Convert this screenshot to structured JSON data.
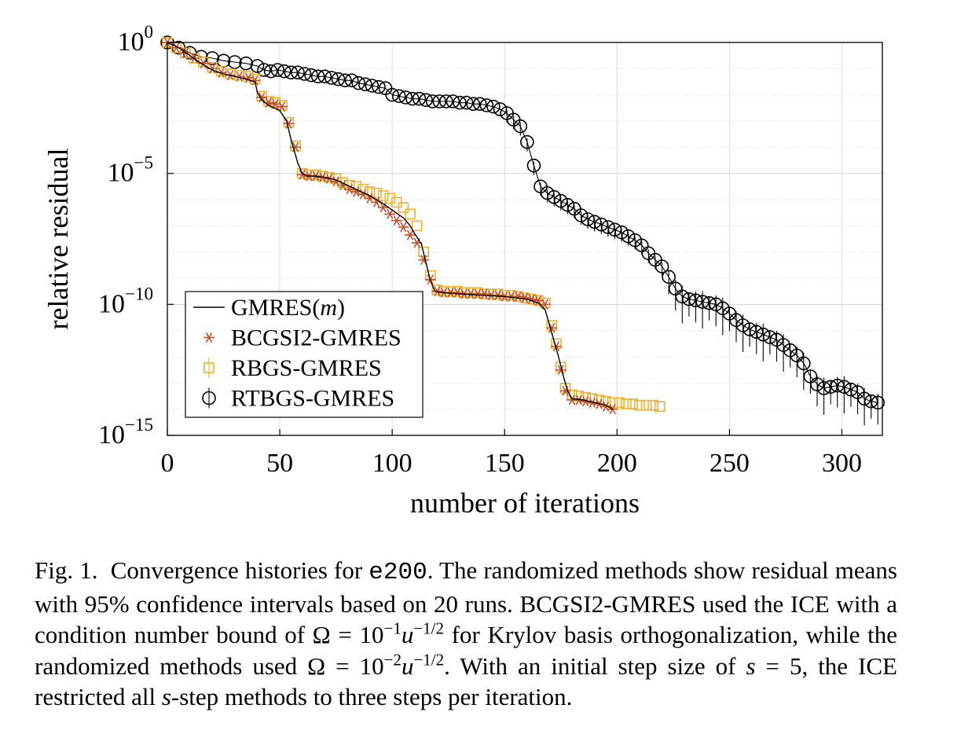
{
  "chart_data": {
    "type": "line",
    "xlabel": "number of iterations",
    "ylabel": "relative residual",
    "xlim": [
      0,
      318
    ],
    "ylim_log10": [
      -15,
      0
    ],
    "y_scale": "log",
    "x_ticks": [
      "0",
      "50",
      "100",
      "150",
      "200",
      "250",
      "300"
    ],
    "y_ticks": [
      {
        "base": "10",
        "exp": "0"
      },
      {
        "base": "10",
        "exp": "−5"
      },
      {
        "base": "10",
        "exp": "−10"
      },
      {
        "base": "10",
        "exp": "−15"
      }
    ],
    "grid": true,
    "legend_position": "lower-left",
    "legend": [
      {
        "prefix": "GMRES(",
        "italic": "m",
        "suffix": ")",
        "marker": "line",
        "color": "#000000"
      },
      {
        "prefix": "BCGSI2-GMRES",
        "italic": "",
        "suffix": "",
        "marker": "asterisk",
        "color": "#c0512f"
      },
      {
        "prefix": "RBGS-GMRES",
        "italic": "",
        "suffix": "",
        "marker": "square",
        "color": "#edb12e"
      },
      {
        "prefix": "RTBGS-GMRES",
        "italic": "",
        "suffix": "",
        "marker": "circle",
        "color": "#000000"
      }
    ],
    "series": [
      {
        "name": "GMRES(m)",
        "color": "#000000",
        "points": [
          [
            0,
            0
          ],
          [
            5,
            -0.2
          ],
          [
            10,
            -0.5
          ],
          [
            15,
            -0.8
          ],
          [
            20,
            -1.05
          ],
          [
            25,
            -1.2
          ],
          [
            30,
            -1.3
          ],
          [
            35,
            -1.4
          ],
          [
            39,
            -1.5
          ],
          [
            40,
            -1.9
          ],
          [
            42,
            -2.2
          ],
          [
            45,
            -2.4
          ],
          [
            50,
            -2.6
          ],
          [
            53,
            -3.0
          ],
          [
            55,
            -3.7
          ],
          [
            58,
            -4.6
          ],
          [
            60,
            -5.0
          ],
          [
            62,
            -5.1
          ],
          [
            65,
            -5.1
          ],
          [
            70,
            -5.15
          ],
          [
            75,
            -5.25
          ],
          [
            80,
            -5.45
          ],
          [
            85,
            -5.65
          ],
          [
            90,
            -5.85
          ],
          [
            95,
            -6.1
          ],
          [
            100,
            -6.4
          ],
          [
            105,
            -6.7
          ],
          [
            108,
            -7.0
          ],
          [
            110,
            -7.3
          ],
          [
            113,
            -7.7
          ],
          [
            115,
            -8.4
          ],
          [
            117,
            -9.1
          ],
          [
            119,
            -9.5
          ],
          [
            122,
            -9.55
          ],
          [
            130,
            -9.6
          ],
          [
            140,
            -9.65
          ],
          [
            150,
            -9.7
          ],
          [
            160,
            -9.8
          ],
          [
            165,
            -9.95
          ],
          [
            168,
            -10.2
          ],
          [
            170,
            -10.8
          ],
          [
            172,
            -11.4
          ],
          [
            174,
            -12.0
          ],
          [
            176,
            -12.7
          ],
          [
            178,
            -13.3
          ],
          [
            180,
            -13.6
          ],
          [
            185,
            -13.65
          ],
          [
            190,
            -13.75
          ],
          [
            195,
            -13.85
          ],
          [
            198,
            -14.0
          ]
        ]
      },
      {
        "name": "BCGSI2-GMRES",
        "color": "#c0512f",
        "points": [
          [
            0,
            0
          ],
          [
            4,
            -0.2
          ],
          [
            8,
            -0.4
          ],
          [
            12,
            -0.6
          ],
          [
            16,
            -0.8
          ],
          [
            20,
            -1.0
          ],
          [
            24,
            -1.15
          ],
          [
            28,
            -1.25
          ],
          [
            32,
            -1.3
          ],
          [
            36,
            -1.35
          ],
          [
            39,
            -1.45
          ],
          [
            42,
            -2.1
          ],
          [
            45,
            -2.3
          ],
          [
            48,
            -2.35
          ],
          [
            51,
            -2.45
          ],
          [
            54,
            -3.1
          ],
          [
            57,
            -4.0
          ],
          [
            60,
            -5.05
          ],
          [
            63,
            -5.1
          ],
          [
            66,
            -5.1
          ],
          [
            69,
            -5.15
          ],
          [
            72,
            -5.2
          ],
          [
            75,
            -5.3
          ],
          [
            78,
            -5.45
          ],
          [
            81,
            -5.6
          ],
          [
            84,
            -5.7
          ],
          [
            87,
            -5.8
          ],
          [
            90,
            -5.95
          ],
          [
            93,
            -6.1
          ],
          [
            96,
            -6.3
          ],
          [
            99,
            -6.55
          ],
          [
            102,
            -6.8
          ],
          [
            105,
            -7.05
          ],
          [
            108,
            -7.35
          ],
          [
            111,
            -7.65
          ],
          [
            114,
            -8.3
          ],
          [
            117,
            -9.05
          ],
          [
            120,
            -9.5
          ],
          [
            123,
            -9.55
          ],
          [
            126,
            -9.55
          ],
          [
            129,
            -9.55
          ],
          [
            132,
            -9.6
          ],
          [
            135,
            -9.6
          ],
          [
            138,
            -9.6
          ],
          [
            141,
            -9.6
          ],
          [
            144,
            -9.65
          ],
          [
            147,
            -9.65
          ],
          [
            150,
            -9.7
          ],
          [
            153,
            -9.7
          ],
          [
            156,
            -9.7
          ],
          [
            159,
            -9.75
          ],
          [
            162,
            -9.8
          ],
          [
            165,
            -9.85
          ],
          [
            168,
            -10.0
          ],
          [
            171,
            -10.9
          ],
          [
            173,
            -11.6
          ],
          [
            175,
            -12.5
          ],
          [
            177,
            -13.3
          ],
          [
            180,
            -13.65
          ],
          [
            183,
            -13.65
          ],
          [
            186,
            -13.7
          ],
          [
            189,
            -13.75
          ],
          [
            192,
            -13.8
          ],
          [
            195,
            -13.9
          ],
          [
            198,
            -14.0
          ]
        ]
      },
      {
        "name": "RBGS-GMRES",
        "color": "#edb12e",
        "points": [
          [
            0,
            0
          ],
          [
            4,
            -0.2
          ],
          [
            8,
            -0.4
          ],
          [
            12,
            -0.6
          ],
          [
            16,
            -0.75
          ],
          [
            20,
            -0.95
          ],
          [
            24,
            -1.1
          ],
          [
            28,
            -1.2
          ],
          [
            32,
            -1.25
          ],
          [
            36,
            -1.3
          ],
          [
            39,
            -1.4
          ],
          [
            42,
            -2.05
          ],
          [
            45,
            -2.25
          ],
          [
            48,
            -2.3
          ],
          [
            51,
            -2.4
          ],
          [
            54,
            -3.05
          ],
          [
            57,
            -3.95
          ],
          [
            60,
            -5.0
          ],
          [
            63,
            -5.05
          ],
          [
            66,
            -5.05
          ],
          [
            69,
            -5.1
          ],
          [
            72,
            -5.15
          ],
          [
            75,
            -5.2
          ],
          [
            78,
            -5.35
          ],
          [
            81,
            -5.45
          ],
          [
            84,
            -5.5
          ],
          [
            87,
            -5.6
          ],
          [
            90,
            -5.7
          ],
          [
            93,
            -5.75
          ],
          [
            96,
            -5.85
          ],
          [
            99,
            -5.95
          ],
          [
            102,
            -6.1
          ],
          [
            105,
            -6.3
          ],
          [
            108,
            -6.55
          ],
          [
            111,
            -7.0
          ],
          [
            114,
            -8.0
          ],
          [
            117,
            -8.9
          ],
          [
            120,
            -9.45
          ],
          [
            123,
            -9.5
          ],
          [
            126,
            -9.5
          ],
          [
            129,
            -9.5
          ],
          [
            132,
            -9.55
          ],
          [
            135,
            -9.55
          ],
          [
            138,
            -9.55
          ],
          [
            141,
            -9.6
          ],
          [
            144,
            -9.6
          ],
          [
            147,
            -9.6
          ],
          [
            150,
            -9.65
          ],
          [
            153,
            -9.65
          ],
          [
            156,
            -9.7
          ],
          [
            159,
            -9.75
          ],
          [
            162,
            -9.8
          ],
          [
            165,
            -9.85
          ],
          [
            168,
            -9.95
          ],
          [
            171,
            -10.8
          ],
          [
            173,
            -11.5
          ],
          [
            175,
            -12.4
          ],
          [
            177,
            -13.2
          ],
          [
            180,
            -13.45
          ],
          [
            183,
            -13.5
          ],
          [
            186,
            -13.55
          ],
          [
            189,
            -13.6
          ],
          [
            192,
            -13.65
          ],
          [
            195,
            -13.7
          ],
          [
            198,
            -13.75
          ],
          [
            201,
            -13.75
          ],
          [
            204,
            -13.8
          ],
          [
            207,
            -13.8
          ],
          [
            210,
            -13.85
          ],
          [
            213,
            -13.85
          ],
          [
            216,
            -13.85
          ],
          [
            219,
            -13.9
          ]
        ]
      },
      {
        "name": "RTBGS-GMRES",
        "color": "#000000",
        "points": [
          [
            0,
            0
          ],
          [
            5,
            -0.2
          ],
          [
            10,
            -0.4
          ],
          [
            15,
            -0.55
          ],
          [
            20,
            -0.6
          ],
          [
            25,
            -0.7
          ],
          [
            30,
            -0.75
          ],
          [
            35,
            -0.8
          ],
          [
            40,
            -0.9
          ],
          [
            43,
            -1.05
          ],
          [
            46,
            -1.1
          ],
          [
            49,
            -1.05
          ],
          [
            52,
            -1.1
          ],
          [
            55,
            -1.15
          ],
          [
            58,
            -1.15
          ],
          [
            61,
            -1.2
          ],
          [
            64,
            -1.25
          ],
          [
            67,
            -1.3
          ],
          [
            70,
            -1.3
          ],
          [
            73,
            -1.35
          ],
          [
            76,
            -1.4
          ],
          [
            79,
            -1.45
          ],
          [
            82,
            -1.45
          ],
          [
            85,
            -1.55
          ],
          [
            88,
            -1.6
          ],
          [
            91,
            -1.65
          ],
          [
            94,
            -1.7
          ],
          [
            97,
            -1.75
          ],
          [
            100,
            -2.0
          ],
          [
            103,
            -2.05
          ],
          [
            106,
            -2.1
          ],
          [
            109,
            -2.15
          ],
          [
            112,
            -2.15
          ],
          [
            115,
            -2.2
          ],
          [
            118,
            -2.25
          ],
          [
            121,
            -2.25
          ],
          [
            124,
            -2.25
          ],
          [
            127,
            -2.25
          ],
          [
            130,
            -2.3
          ],
          [
            133,
            -2.3
          ],
          [
            136,
            -2.35
          ],
          [
            139,
            -2.35
          ],
          [
            142,
            -2.4
          ],
          [
            145,
            -2.45
          ],
          [
            148,
            -2.55
          ],
          [
            151,
            -2.7
          ],
          [
            154,
            -2.95
          ],
          [
            157,
            -3.2
          ],
          [
            160,
            -3.8
          ],
          [
            163,
            -4.7
          ],
          [
            166,
            -5.5
          ],
          [
            169,
            -5.75
          ],
          [
            172,
            -5.9
          ],
          [
            175,
            -6.05
          ],
          [
            178,
            -6.2
          ],
          [
            181,
            -6.35
          ],
          [
            184,
            -6.6
          ],
          [
            187,
            -6.75
          ],
          [
            190,
            -6.85
          ],
          [
            193,
            -6.95
          ],
          [
            196,
            -7.05
          ],
          [
            199,
            -7.15
          ],
          [
            202,
            -7.25
          ],
          [
            205,
            -7.4
          ],
          [
            208,
            -7.55
          ],
          [
            211,
            -7.75
          ],
          [
            214,
            -8.05
          ],
          [
            217,
            -8.3
          ],
          [
            220,
            -8.55
          ],
          [
            223,
            -8.95
          ],
          [
            226,
            -9.4
          ],
          [
            229,
            -9.7
          ],
          [
            232,
            -9.8
          ],
          [
            235,
            -9.85
          ],
          [
            238,
            -9.9
          ],
          [
            241,
            -9.95
          ],
          [
            244,
            -10.0
          ],
          [
            247,
            -10.15
          ],
          [
            250,
            -10.35
          ],
          [
            253,
            -10.6
          ],
          [
            256,
            -10.8
          ],
          [
            259,
            -10.95
          ],
          [
            262,
            -11.05
          ],
          [
            265,
            -11.15
          ],
          [
            268,
            -11.25
          ],
          [
            271,
            -11.35
          ],
          [
            274,
            -11.55
          ],
          [
            277,
            -11.75
          ],
          [
            280,
            -11.95
          ],
          [
            283,
            -12.25
          ],
          [
            286,
            -12.75
          ],
          [
            289,
            -13.05
          ],
          [
            292,
            -13.2
          ],
          [
            295,
            -13.15
          ],
          [
            298,
            -13.1
          ],
          [
            301,
            -13.15
          ],
          [
            304,
            -13.25
          ],
          [
            307,
            -13.35
          ],
          [
            310,
            -13.6
          ],
          [
            313,
            -13.7
          ],
          [
            316,
            -13.75
          ]
        ]
      }
    ]
  },
  "caption": {
    "label": "Fig. 1.",
    "p1": "Convergence histories for ",
    "code": "e200",
    "p2": ". The randomized methods show residual means with 95% confidence intervals based on 20 runs. BCGSI2-GMRES used the ICE with a condition number bound of Ω = 10",
    "exp1": "−1",
    "u1": "u",
    "exp2": "−1/2",
    "p3": " for Krylov basis orthogonalization, while the randomized methods used Ω = 10",
    "exp3": "−2",
    "u2": "u",
    "exp4": "−1/2",
    "p4": ". With an initial step size of ",
    "s1": "s",
    "p5": " = 5, the ICE restricted all ",
    "s2": "s",
    "p6": "-step methods to three steps per iteration."
  }
}
